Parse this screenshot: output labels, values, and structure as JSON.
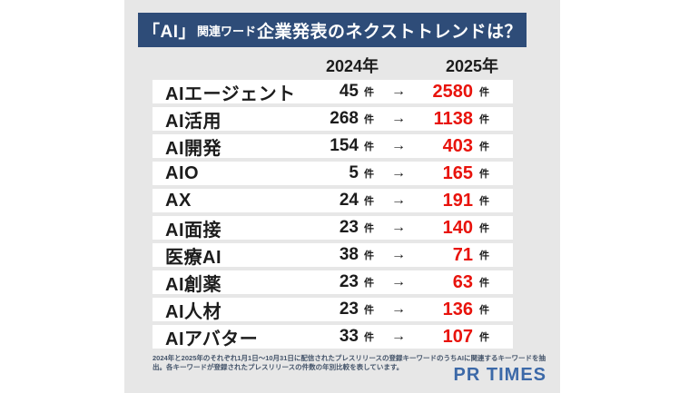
{
  "title": {
    "bracket": "「AI」",
    "qualifier": "関連ワード",
    "main": "企業発表のネクストトレンドは？"
  },
  "columns": {
    "y2024": "2024年",
    "y2025": "2025年"
  },
  "unit": "件",
  "arrow": "→",
  "rows": [
    {
      "label": "AIエージェント",
      "v2024": "45",
      "v2025": "2580"
    },
    {
      "label": "AI活用",
      "v2024": "268",
      "v2025": "1138"
    },
    {
      "label": "AI開発",
      "v2024": "154",
      "v2025": "403"
    },
    {
      "label": "AIO",
      "v2024": "5",
      "v2025": "165"
    },
    {
      "label": "AX",
      "v2024": "24",
      "v2025": "191"
    },
    {
      "label": "AI面接",
      "v2024": "23",
      "v2025": "140"
    },
    {
      "label": "医療AI",
      "v2024": "38",
      "v2025": "71"
    },
    {
      "label": "AI創薬",
      "v2024": "23",
      "v2025": "63"
    },
    {
      "label": "AI人材",
      "v2024": "23",
      "v2025": "136"
    },
    {
      "label": "AIアバター",
      "v2024": "33",
      "v2025": "107"
    }
  ],
  "footnote": "2024年と2025年のそれぞれ1月1日～10月31日に配信されたプレスリリースの登録キーワードのうちAIに関連するキーワードを抽出。各キーワードが登録されたプレスリリースの件数の年別比較を表しています。",
  "logo": {
    "text": "PR TIMES"
  },
  "colors": {
    "banner": "#2e4c78",
    "panel": "#e7e7e7",
    "accent": "#e8130c",
    "footnote": "#44546a",
    "logo": "#3c69a8"
  },
  "chart_data": {
    "type": "table",
    "title": "「AI」関連ワード企業発表のネクストトレンドは？",
    "categories": [
      "AIエージェント",
      "AI活用",
      "AI開発",
      "AIO",
      "AX",
      "AI面接",
      "医療AI",
      "AI創薬",
      "AI人材",
      "AIアバター"
    ],
    "series": [
      {
        "name": "2024年",
        "values": [
          45,
          268,
          154,
          5,
          24,
          23,
          38,
          23,
          23,
          33
        ]
      },
      {
        "name": "2025年",
        "values": [
          2580,
          1138,
          403,
          165,
          191,
          140,
          71,
          63,
          136,
          107
        ]
      }
    ],
    "unit": "件",
    "note": "2024年と2025年のそれぞれ1月1日～10月31日に配信されたプレスリリースの登録キーワードのうちAIに関連するキーワードを抽出。各キーワードが登録されたプレスリリースの件数の年別比較を表しています。"
  }
}
